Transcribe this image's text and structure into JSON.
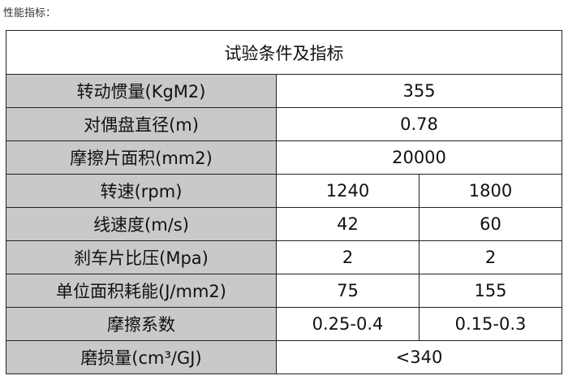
{
  "heading": "性能指标：",
  "table": {
    "title": "试验条件及指标",
    "rows": [
      [
        "转动惯量(KgM2)",
        "355"
      ],
      [
        "对偶盘直径(m)",
        "0.78"
      ],
      [
        "摩擦片面积(mm2)",
        "20000"
      ],
      [
        "转速(rpm)",
        "1240",
        "1800"
      ],
      [
        "线速度(m/s)",
        "42",
        "60"
      ],
      [
        "刹车片比压(Mpa)",
        "2",
        "2"
      ],
      [
        "单位面积耗能(J/mm2)",
        "75",
        "155"
      ],
      [
        "摩擦系数",
        "0.25-0.4",
        "0.15-0.3"
      ],
      [
        "磨损量(cm³/GJ)",
        "<340"
      ]
    ]
  }
}
